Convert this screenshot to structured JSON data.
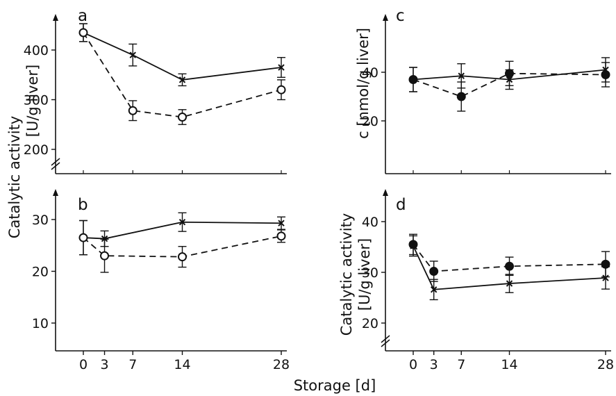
{
  "figure": {
    "shared_xlabel": "Storage [d]",
    "left_ylabel_top": "Catalytic activity",
    "left_ylabel_unit": "[U/g liver]",
    "right_c_ylabel": "c [nmol/g liver]",
    "right_d_ylabel_top": "Catalytic activity",
    "right_d_ylabel_unit": "[U/g liver]"
  },
  "chart_data": [
    {
      "panel": "a",
      "type": "line",
      "title": "",
      "xlabel": "",
      "ylabel": "",
      "xlim": [
        -5,
        28
      ],
      "ylim": [
        150,
        480
      ],
      "axis_break": true,
      "yticks": [
        200,
        300,
        400
      ],
      "xticks": [],
      "series": [
        {
          "marker": "cross",
          "line": "solid",
          "x": [
            0,
            7,
            14,
            28
          ],
          "y": [
            435,
            390,
            340,
            365
          ],
          "err": [
            18,
            22,
            12,
            20
          ]
        },
        {
          "marker": "open-circle",
          "line": "dashed",
          "x": [
            0,
            7,
            14,
            28
          ],
          "y": [
            435,
            278,
            265,
            320
          ],
          "err": [
            18,
            20,
            15,
            20
          ]
        }
      ]
    },
    {
      "panel": "c",
      "type": "line",
      "title": "",
      "xlabel": "",
      "ylabel": "",
      "xlim": [
        -5,
        28
      ],
      "ylim": [
        0,
        60
      ],
      "axis_break": false,
      "yticks": [
        20,
        40
      ],
      "xticks": [],
      "series": [
        {
          "marker": "cross",
          "line": "solid",
          "x": [
            0,
            7,
            14,
            28
          ],
          "y": [
            37,
            38.5,
            37,
            41
          ],
          "err": [
            5,
            5,
            4,
            5
          ]
        },
        {
          "marker": "filled-circle",
          "line": "dashed",
          "x": [
            0,
            7,
            14,
            28
          ],
          "y": [
            37,
            30,
            39.5,
            39
          ],
          "err": [
            5,
            6,
            5,
            5
          ]
        }
      ]
    },
    {
      "panel": "b",
      "type": "line",
      "title": "",
      "xlabel": "",
      "ylabel": "",
      "xlim": [
        -5,
        28
      ],
      "ylim": [
        5,
        37
      ],
      "axis_break": false,
      "yticks": [
        10,
        20,
        30
      ],
      "xticks": [
        0,
        3,
        7,
        14,
        28
      ],
      "series": [
        {
          "marker": "cross",
          "line": "solid",
          "x": [
            0,
            3,
            14,
            28
          ],
          "y": [
            26.5,
            26.3,
            29.5,
            29.3
          ],
          "err": [
            3.3,
            1.5,
            1.8,
            1.2
          ]
        },
        {
          "marker": "open-circle",
          "line": "dashed",
          "x": [
            0,
            3,
            14,
            28
          ],
          "y": [
            26.5,
            23,
            22.8,
            26.8
          ],
          "err": [
            3.3,
            3.2,
            2,
            1.2
          ]
        }
      ]
    },
    {
      "panel": "d",
      "type": "line",
      "title": "",
      "xlabel": "",
      "ylabel": "",
      "xlim": [
        -5,
        28
      ],
      "ylim": [
        15,
        46
      ],
      "axis_break": true,
      "yticks": [
        20,
        30,
        40
      ],
      "xticks": [
        0,
        3,
        7,
        14,
        28
      ],
      "series": [
        {
          "marker": "filled-circle",
          "line": "dashed",
          "x": [
            0,
            3,
            14,
            28
          ],
          "y": [
            35.5,
            30.2,
            31.2,
            31.6
          ],
          "err": [
            2,
            2,
            1.8,
            2.5
          ]
        },
        {
          "marker": "cross",
          "line": "solid",
          "x": [
            0,
            3,
            14,
            28
          ],
          "y": [
            35.2,
            26.6,
            27.8,
            28.9
          ],
          "err": [
            2,
            2,
            1.8,
            2.2
          ]
        }
      ]
    }
  ]
}
